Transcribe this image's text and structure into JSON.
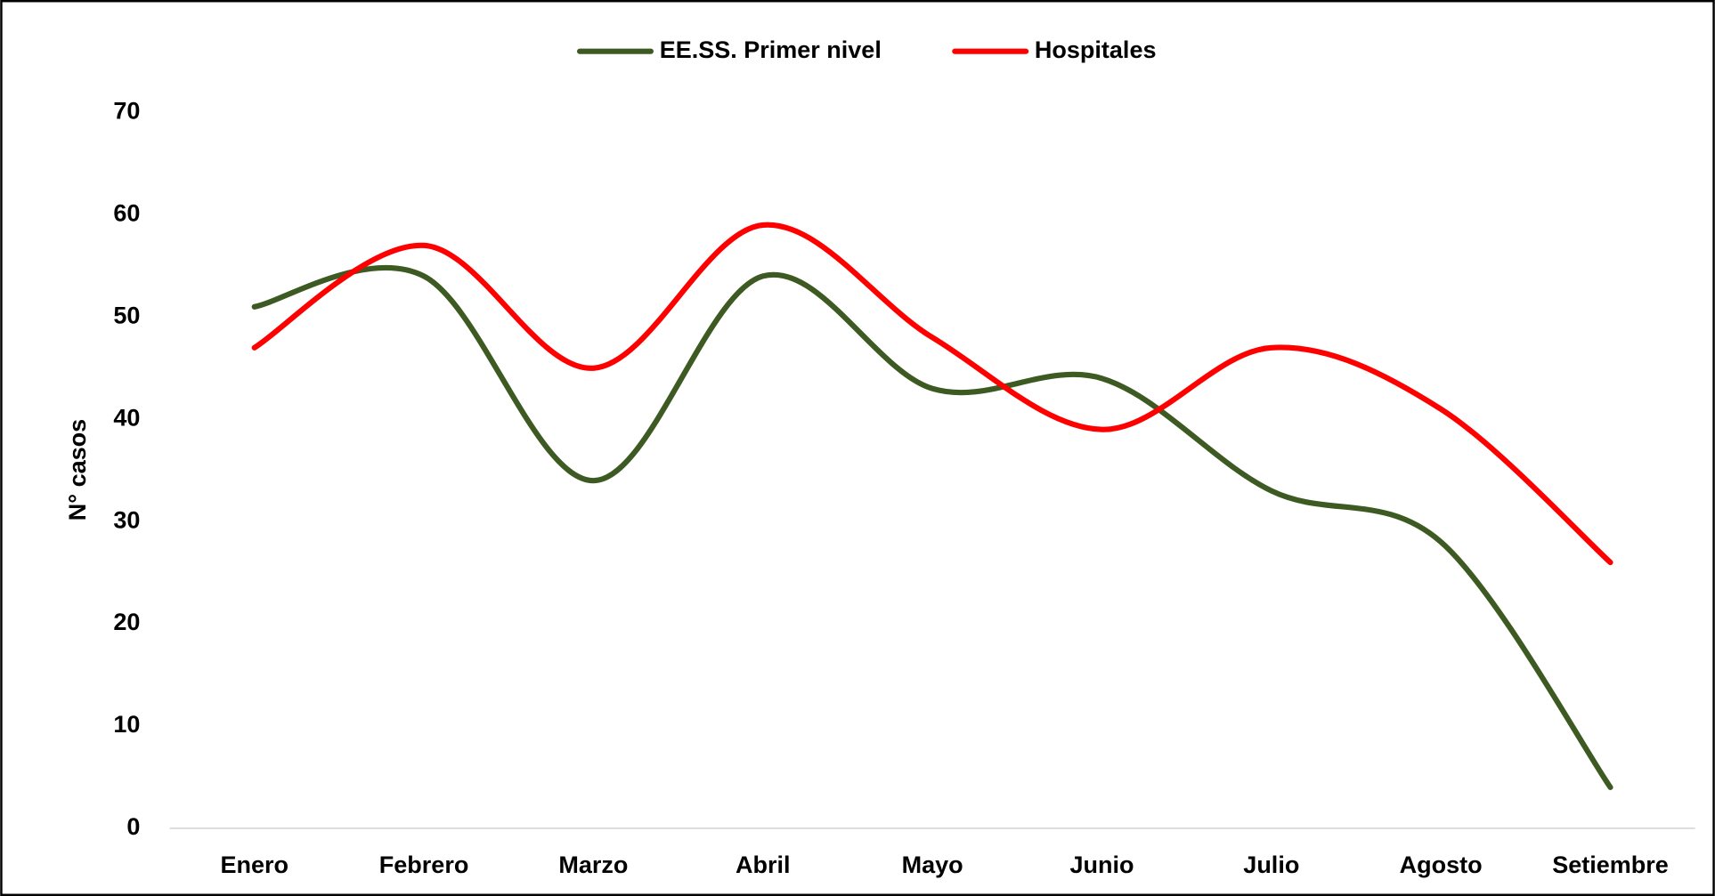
{
  "chart_data": {
    "type": "line",
    "y_label": "N° casos",
    "categories": [
      "Enero",
      "Febrero",
      "Marzo",
      "Abril",
      "Mayo",
      "Junio",
      "Julio",
      "Agosto",
      "Setiembre"
    ],
    "series": [
      {
        "name": "EE.SS. Primer nivel",
        "color": "#3d5a22",
        "values": [
          51,
          54,
          34,
          54,
          43,
          44,
          33,
          28,
          4
        ]
      },
      {
        "name": "Hospitales",
        "color": "#ff0000",
        "values": [
          47,
          57,
          45,
          59,
          48,
          39,
          47,
          41,
          26
        ]
      }
    ],
    "ylim": [
      0,
      70
    ],
    "yticks": [
      0,
      10,
      20,
      30,
      40,
      50,
      60,
      70
    ],
    "grid": false,
    "legend": "top",
    "smooth": true
  }
}
